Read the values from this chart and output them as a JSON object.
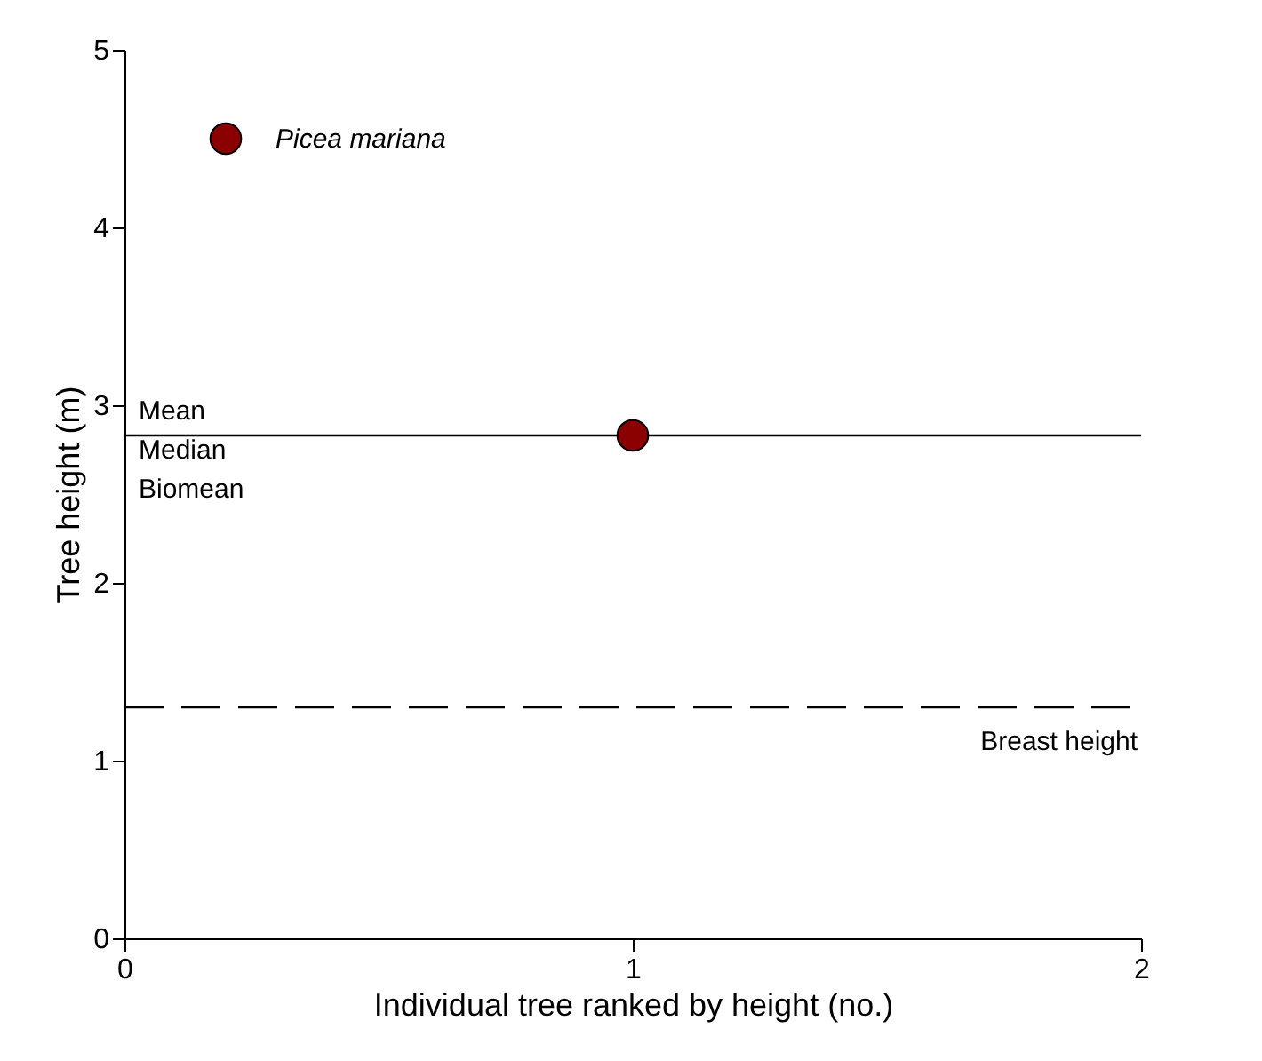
{
  "chart_data": {
    "type": "scatter",
    "xlabel": "Individual tree ranked by height (no.)",
    "ylabel": "Tree height (m)",
    "x": [
      1
    ],
    "series": [
      {
        "name": "Picea mariana",
        "color": "#8b0000",
        "values": [
          2.83
        ]
      }
    ],
    "xlim": [
      0,
      2
    ],
    "xticks": [
      0,
      1,
      2
    ],
    "ylim": [
      0,
      5
    ],
    "yticks": [
      0,
      1,
      2,
      3,
      4,
      5
    ],
    "ref_lines": [
      {
        "axis": "y",
        "value": 2.83,
        "label": "Mean\nMedian\nBiomean",
        "line_style": "solid",
        "color": "#000000"
      },
      {
        "axis": "y",
        "value": 1.3,
        "label": "Breast height",
        "line_style": "dashed",
        "color": "#000000"
      }
    ],
    "marker": "circle",
    "legend": "top left",
    "grid": false
  }
}
